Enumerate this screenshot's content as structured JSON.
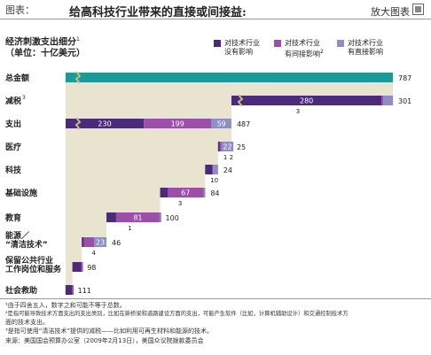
{
  "header": {
    "label": "图表：",
    "title": "给高科技行业带来的直接或间接益:",
    "zoom_label": "放大图表"
  },
  "subtitle": {
    "line1": "经济刺激支出细分",
    "line1_sup": "1",
    "line2": "（单位：十亿美元）"
  },
  "legend": [
    {
      "label_line1": "对技术行业",
      "label_line2": "没有影响",
      "color": "#4b2a7c"
    },
    {
      "label_line1": "对技术行业",
      "label_line2": "有间接影响",
      "label_sup": "2",
      "color": "#9b4fa8"
    },
    {
      "label_line1": "对技术行业",
      "label_line2": "有直接影响",
      "color": "#8d8fc4"
    }
  ],
  "colors": {
    "no_impact": "#4b2a7c",
    "indirect": "#9b4fa8",
    "direct": "#8d8fc4",
    "total": "#1a9a9a",
    "area_fill": "#e8e4d0"
  },
  "chart_data": {
    "type": "bar",
    "subtype": "waterfall",
    "title": "给高科技行业带来的直接或间接益:",
    "unit": "十亿美元",
    "series": [
      {
        "name": "对技术行业没有影响"
      },
      {
        "name": "对技术行业有间接影响"
      },
      {
        "name": "对技术行业有直接影响"
      }
    ],
    "rows": [
      {
        "label": "总金额",
        "segments": [],
        "total": 787,
        "is_total": true
      },
      {
        "label": "减税",
        "label_sup": "3",
        "segments": [
          {
            "series": 0,
            "value": 280
          },
          {
            "series": 1,
            "value": 3
          },
          {
            "series": 2,
            "value": 18
          }
        ],
        "total": 301,
        "sub_label": "3"
      },
      {
        "label": "支出",
        "segments": [
          {
            "series": 0,
            "value": 230
          },
          {
            "series": 1,
            "value": 199
          },
          {
            "series": 2,
            "value": 59
          }
        ],
        "total": 487
      },
      {
        "label": "医疗",
        "segments": [
          {
            "series": 0,
            "value": 1
          },
          {
            "series": 1,
            "value": 2
          },
          {
            "series": 2,
            "value": 22
          }
        ],
        "total": 25,
        "sub_label": "1  2"
      },
      {
        "label": "科技",
        "segments": [
          {
            "series": 0,
            "value": 14
          },
          {
            "series": 2,
            "value": 10
          }
        ],
        "total": 24,
        "sub_label": "10"
      },
      {
        "label": "基础设施",
        "segments": [
          {
            "series": 0,
            "value": 14
          },
          {
            "series": 1,
            "value": 67
          },
          {
            "series": 2,
            "value": 3
          }
        ],
        "total": 84,
        "sub_label": "3"
      },
      {
        "label": "教育",
        "segments": [
          {
            "series": 0,
            "value": 18
          },
          {
            "series": 1,
            "value": 81
          },
          {
            "series": 2,
            "value": 1
          }
        ],
        "total": 100,
        "sub_label": "1"
      },
      {
        "label": "能源／",
        "label_line2": "“清洁技术”",
        "segments": [
          {
            "series": 0,
            "value": 4
          },
          {
            "series": 1,
            "value": 19
          },
          {
            "series": 2,
            "value": 23
          }
        ],
        "total": 46,
        "sub_label": "4"
      },
      {
        "label": "保留公共行业",
        "label_line2": "工作岗位和服务",
        "segments": [
          {
            "series": 0,
            "value": 91
          },
          {
            "series": 1,
            "value": 7
          }
        ],
        "total": 98
      },
      {
        "label": "社会救助",
        "segments": [
          {
            "series": 0,
            "value": 102
          },
          {
            "series": 1,
            "value": 9
          }
        ],
        "total": 111
      }
    ]
  },
  "footnotes": [
    "¹由于四舍五入，数字之和可能不等于总数。",
    "²是指可能导致技术方面支出的支出类别，比如在新桥梁和道路建设方面的支出，可能产生软件（比如，计算机辅助设计）和交通控制技术方",
    "  面的技术支出。",
    "³是指可使用“清洁技术”提供的减税——比如利用可再生材料和能源的技术。",
    "来源：美国国会预算办公室（2009年2月13日），美国众议院拨款委员会"
  ]
}
